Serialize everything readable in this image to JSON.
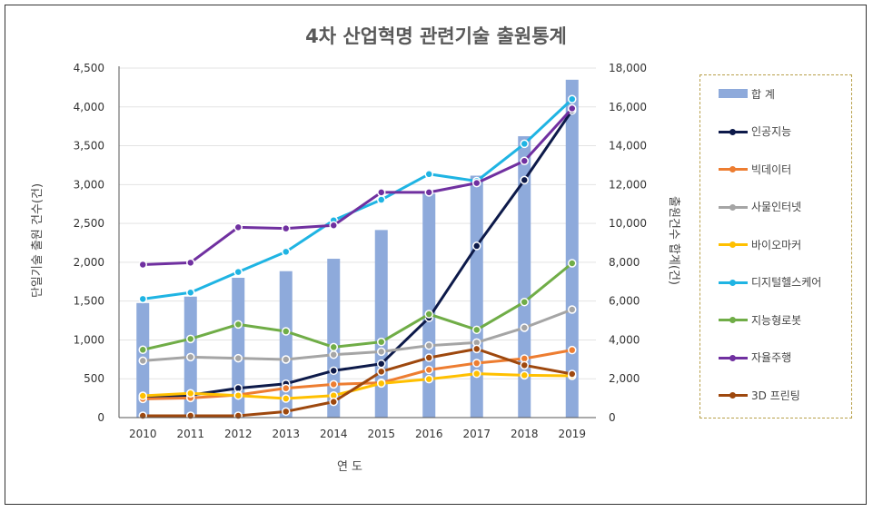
{
  "chart_data": {
    "type": "bar+line",
    "title": "4차 산업혁명 관련기술 출원통계",
    "xlabel": "연 도",
    "ylabel_left": "단일기술 출원 건수(건)",
    "ylabel_right": "출원건수 합계(건)",
    "categories": [
      "2010",
      "2011",
      "2012",
      "2013",
      "2014",
      "2015",
      "2016",
      "2017",
      "2018",
      "2019"
    ],
    "ylim_left": [
      0,
      4500
    ],
    "yticks_left": [
      "0",
      "500",
      "1,000",
      "1,500",
      "2,000",
      "2,500",
      "3,000",
      "3,500",
      "4,000",
      "4,500"
    ],
    "ylim_right": [
      0,
      18000
    ],
    "yticks_right": [
      "0",
      "2,000",
      "4,000",
      "6,000",
      "8,000",
      "10,000",
      "12,000",
      "14,000",
      "16,000",
      "18,000"
    ],
    "grid": true,
    "legend_position": "right",
    "bar_series": {
      "name": "합 계",
      "color": "#8eaadb",
      "axis": "right",
      "values": [
        5900,
        6230,
        7200,
        7540,
        8180,
        9660,
        11530,
        12460,
        14490,
        17400
      ]
    },
    "series": [
      {
        "name": "인공지능",
        "color": "#0d1a4a",
        "values": [
          253,
          290,
          378,
          436,
          604,
          693,
          1285,
          2210,
          3058,
          3955
        ]
      },
      {
        "name": "빅데이터",
        "color": "#ed7d31",
        "values": [
          241,
          253,
          292,
          378,
          428,
          448,
          615,
          701,
          760,
          869
        ]
      },
      {
        "name": "사물인터넷",
        "color": "#a5a5a5",
        "values": [
          732,
          779,
          764,
          748,
          810,
          849,
          927,
          966,
          1157,
          1391
        ]
      },
      {
        "name": "바이오마커",
        "color": "#ffc000",
        "values": [
          280,
          312,
          284,
          245,
          284,
          440,
          495,
          565,
          545,
          538
        ]
      },
      {
        "name": "디지털헬스케어",
        "color": "#1fb4e3",
        "values": [
          1527,
          1610,
          1875,
          2135,
          2540,
          2805,
          3135,
          3045,
          3525,
          4100
        ]
      },
      {
        "name": "지능형로봇",
        "color": "#70ad47",
        "values": [
          873,
          1013,
          1200,
          1110,
          907,
          974,
          1332,
          1130,
          1488,
          1987
        ]
      },
      {
        "name": "자율주행",
        "color": "#7030a0",
        "values": [
          1970,
          1995,
          2450,
          2435,
          2475,
          2900,
          2900,
          3020,
          3305,
          3980
        ]
      },
      {
        "name": "3D 프린팅",
        "color": "#9e480e",
        "values": [
          23,
          23,
          23,
          78,
          203,
          592,
          771,
          884,
          674,
          561
        ]
      }
    ]
  }
}
